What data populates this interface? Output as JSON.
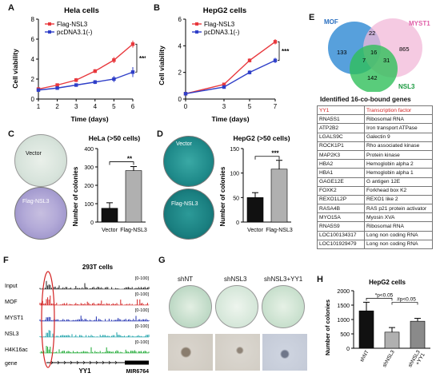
{
  "panels": {
    "A": {
      "letter": "A",
      "title": "Hela cells",
      "ylabel": "Cell viability",
      "xlabel": "Time (days)",
      "xticks": [
        "1",
        "2",
        "3",
        "4",
        "5",
        "6"
      ],
      "yticks": [
        "0",
        "2",
        "4",
        "6",
        "8"
      ],
      "sig": "***",
      "legend": [
        "Flag-NSL3",
        "pcDNA3.1(-)"
      ]
    },
    "B": {
      "letter": "B",
      "title": "HepG2 cells",
      "ylabel": "Cell viability",
      "xlabel": "Time (days)",
      "xticks": [
        "0",
        "3",
        "5",
        "7"
      ],
      "yticks": [
        "0",
        "2",
        "4",
        "6"
      ],
      "sig": "***",
      "legend": [
        "Flag-NSL3",
        "pcDNA3.1(-)"
      ]
    },
    "C": {
      "letter": "C",
      "title": "HeLa (>50 cells)",
      "ylabel": "Number of colonies",
      "plate1": "Vector",
      "plate2": "Flag-NSL3",
      "yticks": [
        "0",
        "100",
        "200",
        "300",
        "400"
      ],
      "categories": [
        "Vector",
        "Flag-NSL3"
      ],
      "sig": "**"
    },
    "D": {
      "letter": "D",
      "title": "HepG2 (>50 cells)",
      "ylabel": "Number of colonies",
      "plate1": "Vector",
      "plate2": "Flag-NSL3",
      "yticks": [
        "0",
        "50",
        "100",
        "150"
      ],
      "categories": [
        "Vector",
        "Flag-NSL3"
      ],
      "sig": "***"
    },
    "E": {
      "letter": "E",
      "venn": {
        "mof": "MOF",
        "myst1": "MYST1",
        "nsl3": "NSL3",
        "n133": "133",
        "n22": "22",
        "n865": "865",
        "n16": "16",
        "n7": "7",
        "n31": "31",
        "n142": "142"
      },
      "table_title": "Identified  16-co-bound genes",
      "genes": [
        {
          "gene": "YY1",
          "func": "Transcription factor",
          "highlight": true
        },
        {
          "gene": "RNA5S1",
          "func": "Ribosomal RNA"
        },
        {
          "gene": "ATP2B2",
          "func": "Iron transport ATPase"
        },
        {
          "gene": "LGALS9C",
          "func": "Galectin 9"
        },
        {
          "gene": "ROCK1P1",
          "func": "Rho associated kinase"
        },
        {
          "gene": "MAP2K3",
          "func": "Protein kinase"
        },
        {
          "gene": "HBA2",
          "func": "Hemoglobin alpha 2"
        },
        {
          "gene": "HBA1",
          "func": "Hemoglobin alpha 1"
        },
        {
          "gene": "GAGE12E",
          "func": "G antigen 12E"
        },
        {
          "gene": "FOXK2",
          "func": "Forkhead box K2"
        },
        {
          "gene": "REXO1L2P",
          "func": "REXO1 like 2"
        },
        {
          "gene": "RASA4B",
          "func": "RAS p21 protein activator"
        },
        {
          "gene": "MYO15A",
          "func": "Myosin XVA"
        },
        {
          "gene": "RNA5S9",
          "func": "Ribosomal RNA"
        },
        {
          "gene": "LOC100134317",
          "func": "Long non coding RNA"
        },
        {
          "gene": "LOC101929479",
          "func": "Long non coding RNA"
        }
      ]
    },
    "F": {
      "letter": "F",
      "title": "293T cells",
      "tracks": [
        "Input",
        "MOF",
        "MYST1",
        "NSL3",
        "H4K16ac"
      ],
      "range": "[0-100]",
      "gene_label": "gene",
      "gene1": "YY1",
      "gene2": "MIR6764"
    },
    "G": {
      "letter": "G",
      "labels": [
        "shNT",
        "shNSL3",
        "shNSL3+YY1"
      ]
    },
    "H": {
      "letter": "H",
      "title": "HepG2 cells",
      "ylabel": "Number of colonies",
      "yticks": [
        "0",
        "500",
        "1000",
        "1500",
        "2000"
      ],
      "categories": [
        "shNT",
        "shNSL3",
        "shNSL3\n+YY1"
      ],
      "sig1": "*p<0.05",
      "sig2": "#p<0.05"
    }
  },
  "chart_data": [
    {
      "type": "line",
      "panel": "A",
      "title": "Hela cells",
      "xlabel": "Time (days)",
      "ylabel": "Cell viability",
      "xlim": [
        1,
        6
      ],
      "ylim": [
        0,
        8
      ],
      "x": [
        1,
        2,
        3,
        4,
        5,
        6
      ],
      "series": [
        {
          "name": "Flag-NSL3",
          "color": "#e8383d",
          "values": [
            1.0,
            1.4,
            1.9,
            2.8,
            3.9,
            5.5
          ],
          "err": [
            0.15,
            0.15,
            0.2,
            0.2,
            0.3,
            0.35
          ]
        },
        {
          "name": "pcDNA3.1(-)",
          "color": "#2f3fc8",
          "values": [
            0.9,
            1.1,
            1.4,
            1.7,
            2.0,
            2.7
          ],
          "err": [
            0.15,
            0.15,
            0.15,
            0.2,
            0.3,
            0.5
          ]
        }
      ]
    },
    {
      "type": "line",
      "panel": "B",
      "title": "HepG2 cells",
      "xlabel": "Time (days)",
      "ylabel": "Cell viability",
      "xlim": [
        0,
        7
      ],
      "ylim": [
        0,
        6
      ],
      "x": [
        0,
        3,
        5,
        7
      ],
      "series": [
        {
          "name": "Flag-NSL3",
          "color": "#e8383d",
          "values": [
            0.4,
            1.1,
            2.9,
            4.3
          ],
          "err": [
            0.05,
            0.1,
            0.15,
            0.2
          ]
        },
        {
          "name": "pcDNA3.1(-)",
          "color": "#2f3fc8",
          "values": [
            0.4,
            0.9,
            2.0,
            2.9
          ],
          "err": [
            0.05,
            0.1,
            0.15,
            0.2
          ]
        }
      ]
    },
    {
      "type": "bar",
      "panel": "C",
      "title": "HeLa (>50 cells)",
      "ylabel": "Number of colonies",
      "ylim": [
        0,
        400
      ],
      "categories": [
        "Vector",
        "Flag-NSL3"
      ],
      "values": [
        75,
        280
      ],
      "err": [
        30,
        22
      ],
      "colors": [
        "#111111",
        "#b0b0b0"
      ]
    },
    {
      "type": "bar",
      "panel": "D",
      "title": "HepG2 (>50 cells)",
      "ylabel": "Number of colonies",
      "ylim": [
        0,
        150
      ],
      "categories": [
        "Vector",
        "Flag-NSL3"
      ],
      "values": [
        50,
        108
      ],
      "err": [
        10,
        18
      ],
      "colors": [
        "#111111",
        "#b0b0b0"
      ]
    },
    {
      "type": "bar",
      "panel": "H",
      "title": "HepG2 cells",
      "ylabel": "Number of colonies",
      "ylim": [
        0,
        2000
      ],
      "categories": [
        "shNT",
        "shNSL3",
        "shNSL3+YY1"
      ],
      "values": [
        1300,
        560,
        940
      ],
      "err": [
        300,
        160,
        100
      ],
      "colors": [
        "#111111",
        "#b0b0b0",
        "#8a8a8a"
      ]
    }
  ],
  "colors": {
    "red": "#e8383d",
    "blue": "#2f3fc8",
    "grid": "#000000"
  }
}
